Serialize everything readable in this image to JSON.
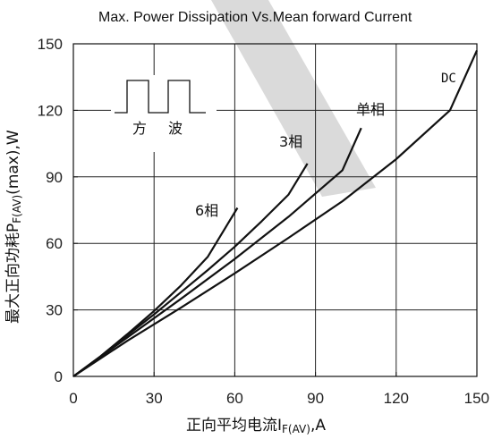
{
  "chart_data": {
    "type": "line",
    "title": "Max. Power Dissipation Vs.Mean forward Current",
    "xlabel": {
      "main": "正向平均电流I",
      "sub": "F(AV)",
      "suffix": ",A"
    },
    "ylabel": {
      "main": "最大正向功耗P",
      "sub": "F(AV)",
      "suffix": "(max),W"
    },
    "xlim": [
      0,
      150
    ],
    "ylim": [
      0,
      150
    ],
    "xticks": [
      "0",
      "30",
      "60",
      "90",
      "120",
      "150"
    ],
    "yticks": [
      "0",
      "30",
      "60",
      "90",
      "120",
      "150"
    ],
    "grid": true,
    "series": [
      {
        "name": "6相",
        "x": [
          0,
          10,
          20,
          30,
          40,
          50,
          61
        ],
        "y": [
          0,
          9,
          19,
          29.5,
          41,
          54,
          76
        ]
      },
      {
        "name": "3相",
        "x": [
          0,
          10,
          20,
          30,
          40,
          50,
          60,
          70,
          80,
          87
        ],
        "y": [
          0,
          9,
          18.5,
          28,
          38,
          48,
          58.5,
          70,
          82,
          96
        ]
      },
      {
        "name": "单相",
        "x": [
          0,
          20,
          40,
          60,
          80,
          100,
          107
        ],
        "y": [
          0,
          17.5,
          35,
          53,
          72,
          93,
          112
        ]
      },
      {
        "name": "DC",
        "x": [
          0,
          20,
          40,
          60,
          80,
          100,
          120,
          140,
          150
        ],
        "y": [
          0,
          16,
          31,
          46.5,
          62.5,
          79,
          98,
          120,
          147
        ]
      }
    ],
    "inset": {
      "label1": "方",
      "label2": "波"
    },
    "colors": {
      "line": "#111111",
      "grid": "#222222",
      "watermark": "#d4d4d4"
    }
  }
}
